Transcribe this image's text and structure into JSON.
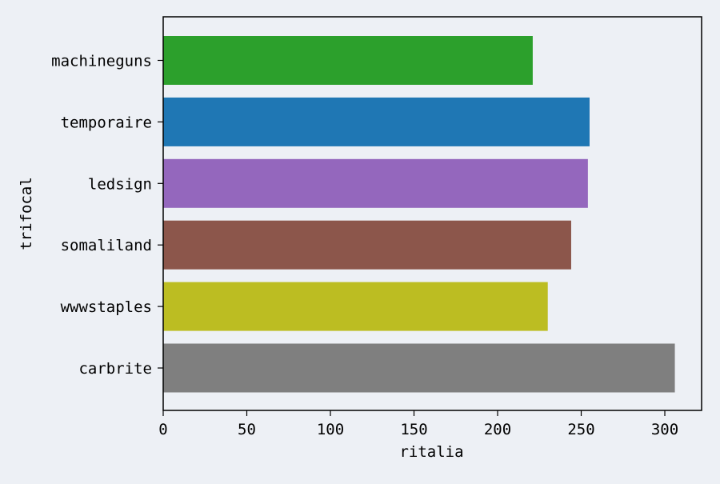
{
  "chart_data": {
    "type": "bar",
    "orientation": "horizontal",
    "categories": [
      "machineguns",
      "temporaire",
      "ledsign",
      "somaliland",
      "wwwstaples",
      "carbrite"
    ],
    "values": [
      221,
      255,
      254,
      244,
      230,
      306
    ],
    "colors": [
      "#2ca02c",
      "#1f77b4",
      "#9467bd",
      "#8c564b",
      "#bcbd22",
      "#7f7f7f"
    ],
    "xlabel": "ritalia",
    "ylabel": "trifocal",
    "xlim": [
      0,
      322
    ],
    "xticks": [
      0,
      50,
      100,
      150,
      200,
      250,
      300
    ],
    "grid": false,
    "background": "#edf0f5"
  }
}
